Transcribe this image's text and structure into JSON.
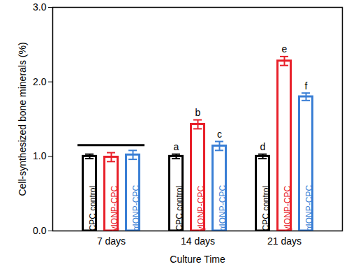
{
  "chart_data": {
    "type": "bar",
    "x_label": "Culture Time",
    "y_label": "Cell-synthesized bone minerals (%)",
    "categories": [
      "7 days",
      "14 days",
      "21 days"
    ],
    "series": [
      {
        "name": "CPC control",
        "color": "#000000",
        "values": [
          1.0,
          1.0,
          1.0
        ],
        "errors": [
          0.03,
          0.03,
          0.03
        ],
        "labels": [
          null,
          "a",
          "d"
        ]
      },
      {
        "name": "γIONP-CPC",
        "color": "#e8202a",
        "values": [
          0.99,
          1.43,
          2.28
        ],
        "errors": [
          0.06,
          0.06,
          0.06
        ],
        "labels": [
          null,
          "b",
          "e"
        ]
      },
      {
        "name": "αIONP-CPC",
        "color": "#3a7fd5",
        "values": [
          1.02,
          1.14,
          1.8
        ],
        "errors": [
          0.06,
          0.06,
          0.05
        ],
        "labels": [
          null,
          "c",
          "f"
        ]
      }
    ],
    "significance_line": {
      "category": "7 days",
      "value": 1.15
    },
    "ylim": [
      0,
      3
    ],
    "yticks": [
      0,
      1,
      2,
      3
    ]
  }
}
